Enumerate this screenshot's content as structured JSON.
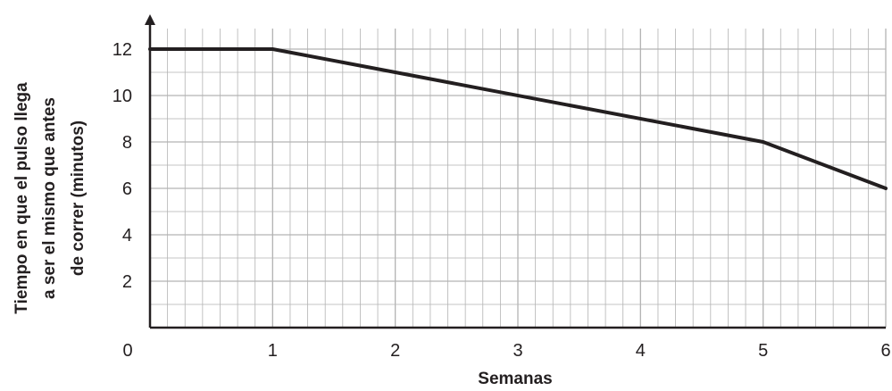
{
  "chart_data": {
    "type": "line",
    "title": "",
    "xlabel": "Semanas",
    "ylabel_lines": [
      "Tiempo en que el pulso llega",
      "a ser el mismo que antes",
      "de correr (minutos)"
    ],
    "x": [
      0,
      1,
      5,
      6
    ],
    "y": [
      12,
      12,
      8,
      6
    ],
    "xlim": [
      0,
      6
    ],
    "ylim": [
      0,
      12
    ],
    "x_ticks": [
      0,
      1,
      2,
      3,
      4,
      5,
      6
    ],
    "y_ticks": [
      2,
      4,
      6,
      8,
      10,
      12
    ],
    "origin_label": "0",
    "grid": true,
    "minor_x_per_week": 7,
    "line_color": "#231f20",
    "grid_color": "#b3b3b3"
  }
}
